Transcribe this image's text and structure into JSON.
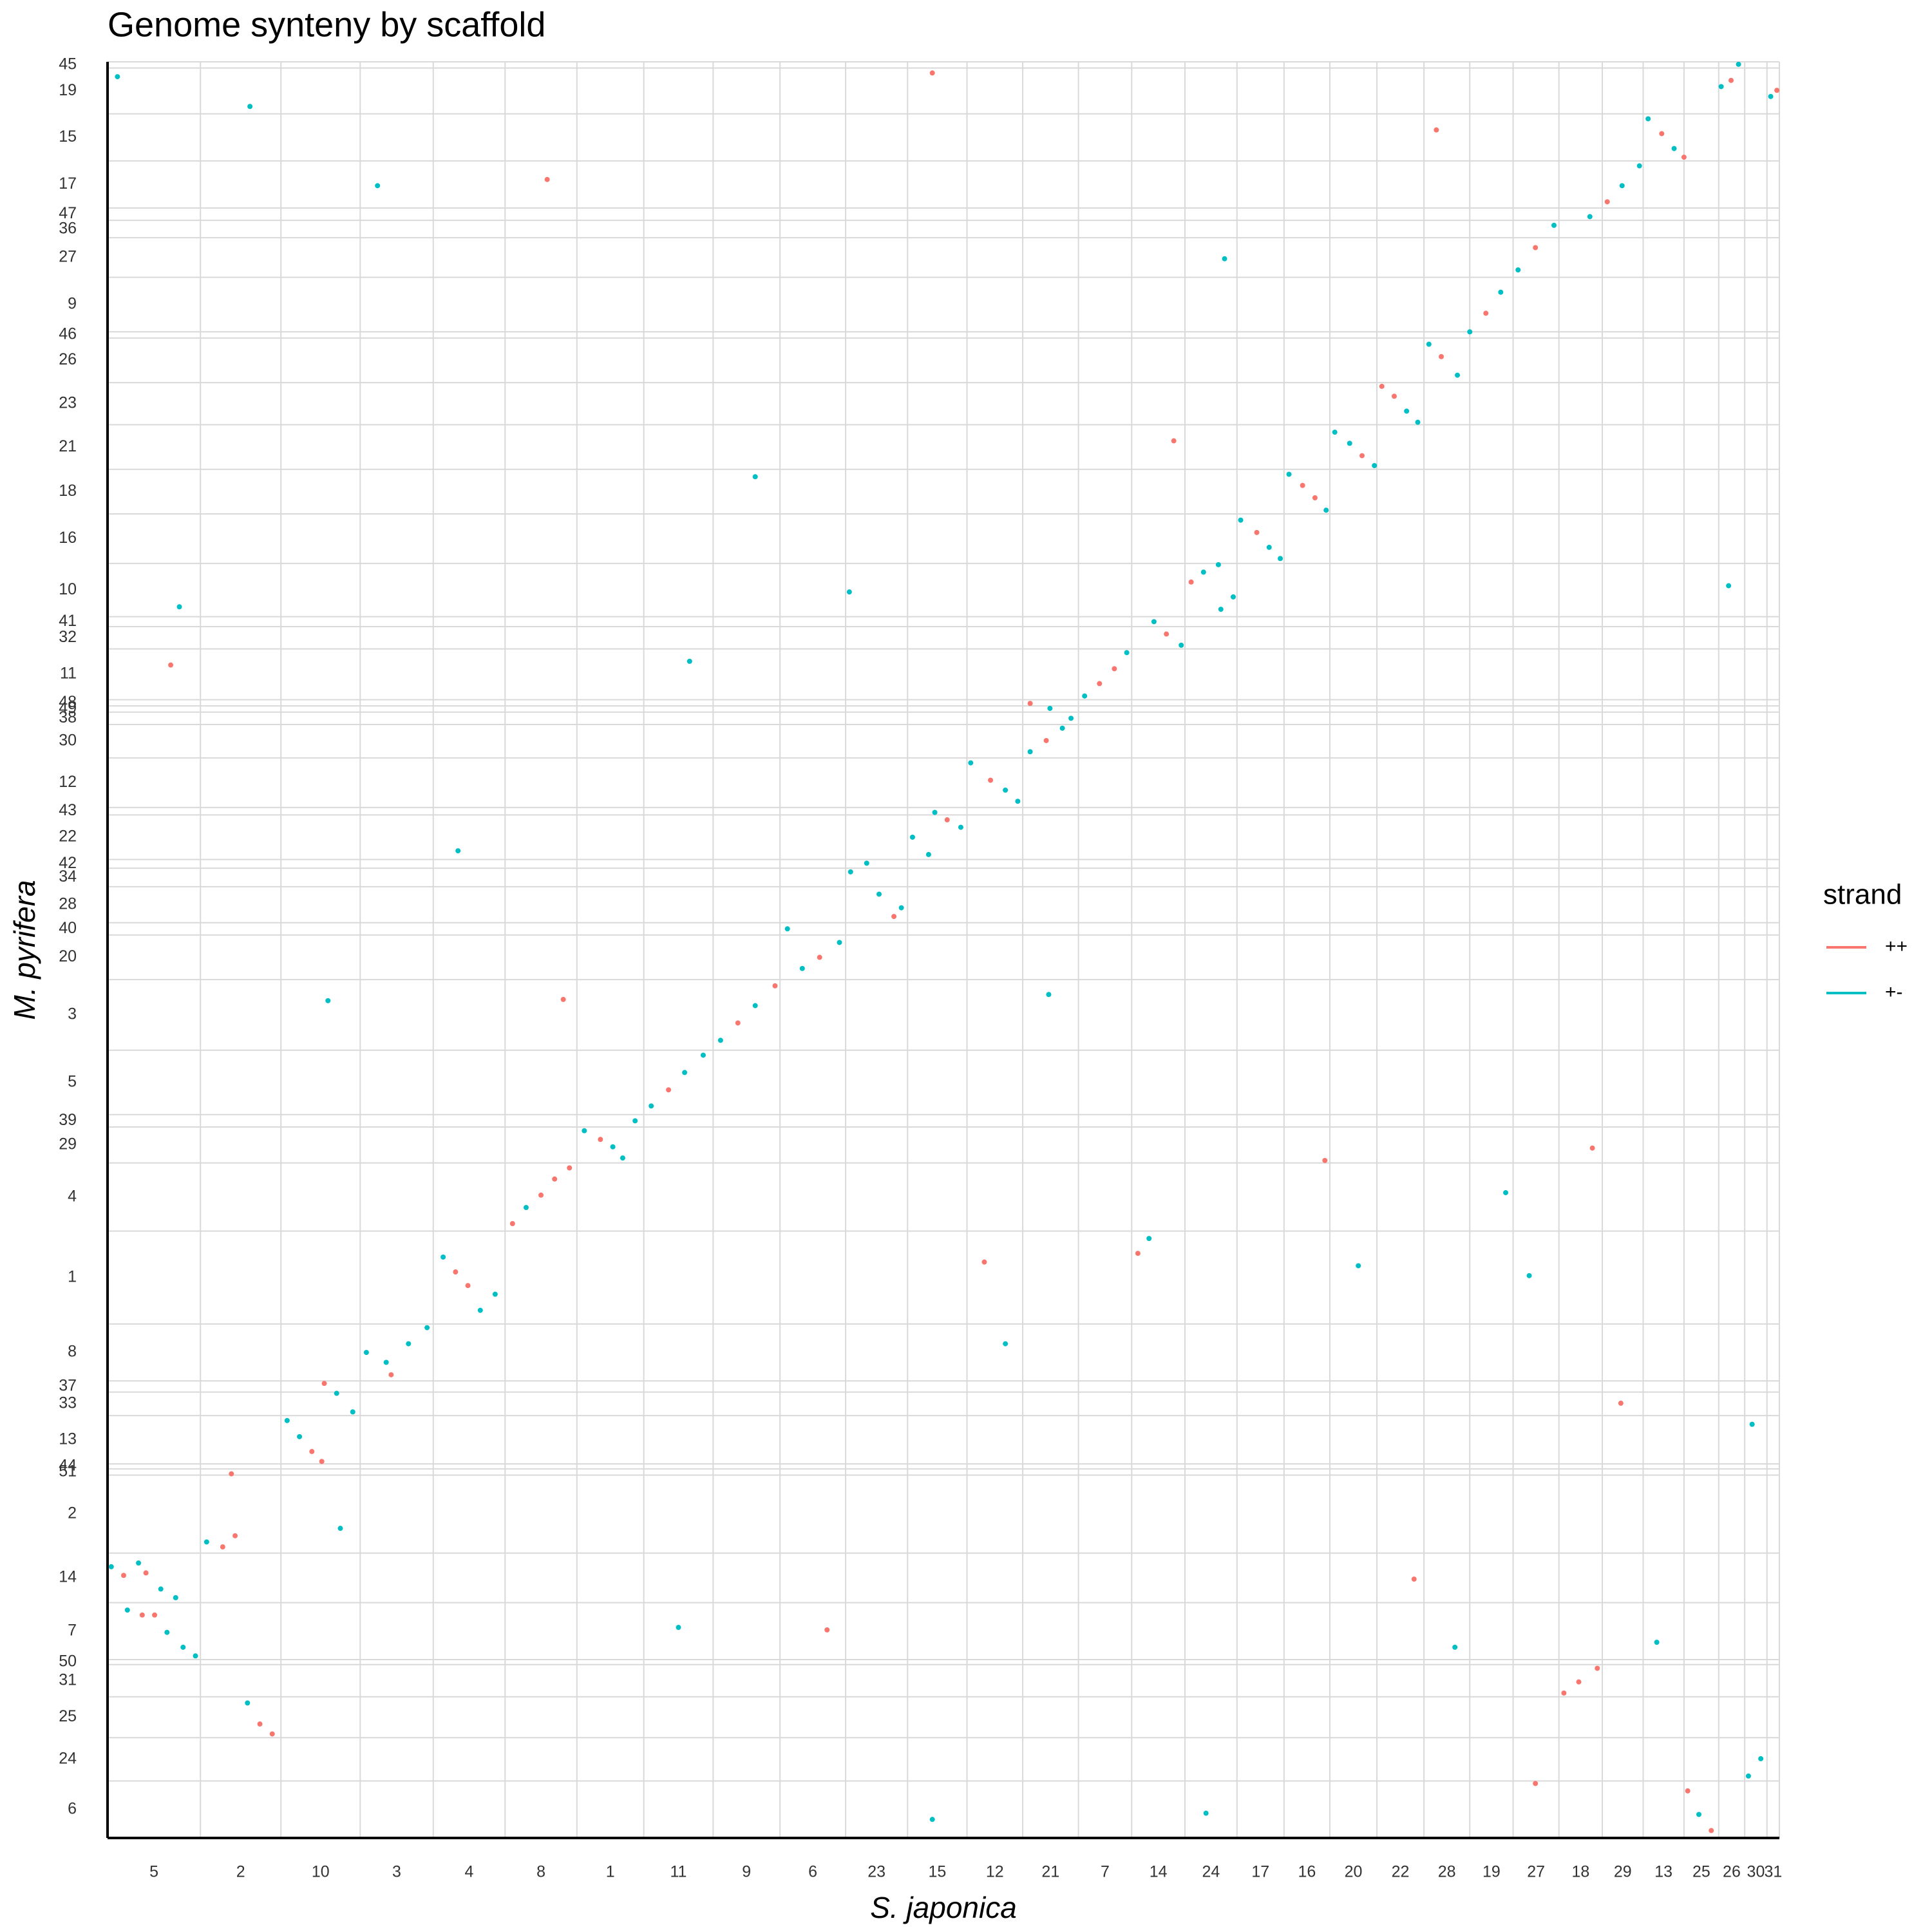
{
  "chart_data": {
    "type": "scatter",
    "title": "Genome synteny by scaffold",
    "x_label": "S. japonica",
    "y_label": "M. pyrifera",
    "legend_title": "strand",
    "legend": "right",
    "xlim": [
      0,
      1350
    ],
    "ylim": [
      0,
      1434
    ],
    "grid": true,
    "x_scaffolds": {
      "labels": [
        "5",
        "2",
        "10",
        "3",
        "4",
        "8",
        "1",
        "11",
        "9",
        "6",
        "23",
        "15",
        "12",
        "21",
        "7",
        "14",
        "24",
        "17",
        "16",
        "20",
        "22",
        "28",
        "19",
        "27",
        "18",
        "29",
        "13",
        "25",
        "26",
        "30",
        "31"
      ],
      "edges": [
        0,
        75,
        140,
        204,
        263,
        321,
        379,
        433,
        489,
        543,
        596,
        646,
        694,
        739,
        784,
        827,
        870,
        912,
        950,
        987,
        1025,
        1063,
        1100,
        1135,
        1172,
        1207,
        1240,
        1273,
        1301,
        1322,
        1340,
        1350
      ]
    },
    "y_scaffolds": {
      "labels": [
        "6",
        "24",
        "25",
        "31",
        "50",
        "7",
        "14",
        "2",
        "51",
        "44",
        "13",
        "33",
        "37",
        "8",
        "1",
        "4",
        "29",
        "39",
        "5",
        "3",
        "20",
        "40",
        "28",
        "34",
        "42",
        "22",
        "43",
        "12",
        "30",
        "38",
        "49",
        "48",
        "11",
        "32",
        "41",
        "10",
        "16",
        "18",
        "21",
        "23",
        "26",
        "46",
        "9",
        "27",
        "36",
        "47",
        "17",
        "15",
        "19",
        "45"
      ],
      "edges": [
        0,
        46,
        81,
        114,
        140,
        144,
        190,
        230,
        293,
        298,
        302,
        341,
        360,
        369,
        415,
        490,
        545,
        574,
        584,
        636,
        693,
        729,
        739,
        768,
        783,
        790,
        826,
        832,
        872,
        899,
        909,
        914,
        919,
        960,
        978,
        986,
        1029,
        1069,
        1105,
        1141,
        1175,
        1211,
        1216,
        1260,
        1292,
        1306,
        1316,
        1354,
        1392,
        1429,
        1434
      ]
    },
    "series": [
      {
        "name": "++",
        "color": "#F8766D",
        "x": [
          13,
          31,
          28,
          38,
          93,
          103,
          100,
          123,
          133,
          165,
          173,
          175,
          229,
          281,
          291,
          327,
          350,
          361,
          373,
          398,
          453,
          509,
          539,
          575,
          635,
          678,
          713,
          758,
          745,
          801,
          813,
          855,
          875,
          928,
          965,
          975,
          1013,
          1029,
          1039,
          1077,
          1113,
          1153,
          1211,
          1255,
          1273,
          1311,
          1348,
          1176,
          1188,
          1203,
          1276,
          1295,
          832,
          355,
          51,
          708,
          666,
          1073,
          1153,
          581,
          1055,
          1222,
          368,
          983,
          1199,
          861
        ],
        "y": [
          212,
          214,
          180,
          180,
          235,
          244,
          294,
          92,
          84,
          312,
          304,
          367,
          374,
          457,
          446,
          496,
          519,
          532,
          541,
          564,
          604,
          658,
          688,
          711,
          744,
          822,
          854,
          886,
          916,
          932,
          944,
          972,
          1014,
          1054,
          1092,
          1082,
          1116,
          1172,
          1164,
          1196,
          1231,
          1284,
          1321,
          1376,
          1357,
          1419,
          1411,
          117,
          126,
          137,
          38,
          6,
          472,
          1339,
          947,
          465,
          1425,
          1379,
          44,
          168,
          209,
          351,
          677,
          547,
          557,
          1128
        ]
      },
      {
        "name": "+-",
        "color": "#00BFC4",
        "x": [
          3,
          25,
          43,
          55,
          16,
          48,
          61,
          71,
          80,
          113,
          145,
          155,
          185,
          198,
          209,
          225,
          243,
          258,
          271,
          301,
          313,
          338,
          385,
          408,
          416,
          426,
          439,
          466,
          481,
          495,
          523,
          549,
          561,
          591,
          600,
          613,
          623,
          641,
          650,
          663,
          668,
          689,
          697,
          725,
          735,
          745,
          771,
          778,
          761,
          789,
          823,
          845,
          867,
          885,
          897,
          899,
          909,
          915,
          938,
          947,
          954,
          984,
          991,
          1003,
          1023,
          1049,
          1058,
          1067,
          1090,
          1100,
          1125,
          1139,
          1168,
          1197,
          1223,
          1237,
          1244,
          1265,
          1303,
          1317,
          1343,
          1285,
          1325,
          1335,
          841,
          8,
          115,
          218,
          470,
          178,
          283,
          1129,
          1148,
          1010,
          902,
          1309,
          666,
          58,
          461,
          1088,
          523,
          599,
          887,
          1251,
          725,
          1328,
          760,
          188
        ],
        "y": [
          219,
          222,
          201,
          194,
          184,
          166,
          154,
          147,
          239,
          109,
          337,
          324,
          359,
          344,
          392,
          384,
          399,
          412,
          469,
          426,
          439,
          509,
          571,
          558,
          549,
          579,
          591,
          618,
          632,
          644,
          672,
          734,
          702,
          723,
          780,
          787,
          762,
          751,
          808,
          794,
          828,
          816,
          868,
          846,
          837,
          877,
          896,
          904,
          912,
          922,
          957,
          982,
          963,
          1022,
          1028,
          992,
          1002,
          1064,
          1042,
          1033,
          1101,
          1072,
          1135,
          1126,
          1108,
          1152,
          1143,
          1206,
          1181,
          1216,
          1248,
          1266,
          1302,
          1309,
          1334,
          1350,
          1388,
          1364,
          1414,
          1432,
          1406,
          19,
          50,
          64,
          484,
          1422,
          1398,
          1334,
          950,
          676,
          797,
          521,
          454,
          462,
          1275,
          1011,
          15,
          994,
          170,
          154,
          1099,
          1006,
          20,
          158,
          399,
          334,
          681,
          250
        ]
      }
    ]
  }
}
